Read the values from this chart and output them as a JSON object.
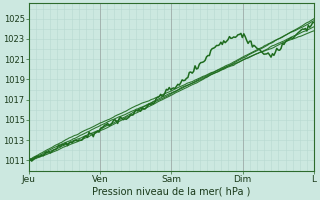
{
  "title": "",
  "xlabel": "Pression niveau de la mer( hPa )",
  "ylabel": "",
  "ylim": [
    1010.0,
    1026.5
  ],
  "yticks": [
    1011,
    1013,
    1015,
    1017,
    1019,
    1021,
    1023,
    1025
  ],
  "xlim": [
    0,
    100
  ],
  "xtick_positions": [
    0,
    25,
    50,
    75,
    100
  ],
  "xtick_labels": [
    "Jeu",
    "Ven",
    "Sam",
    "Dim",
    "L"
  ],
  "bg_color": "#cce8e0",
  "plot_bg_color": "#cce8e0",
  "grid_major_color": "#b0d8cc",
  "grid_minor_color": "#c0e0d8",
  "line_color": "#1e6b1e",
  "line_width": 1.0,
  "num_points": 200
}
